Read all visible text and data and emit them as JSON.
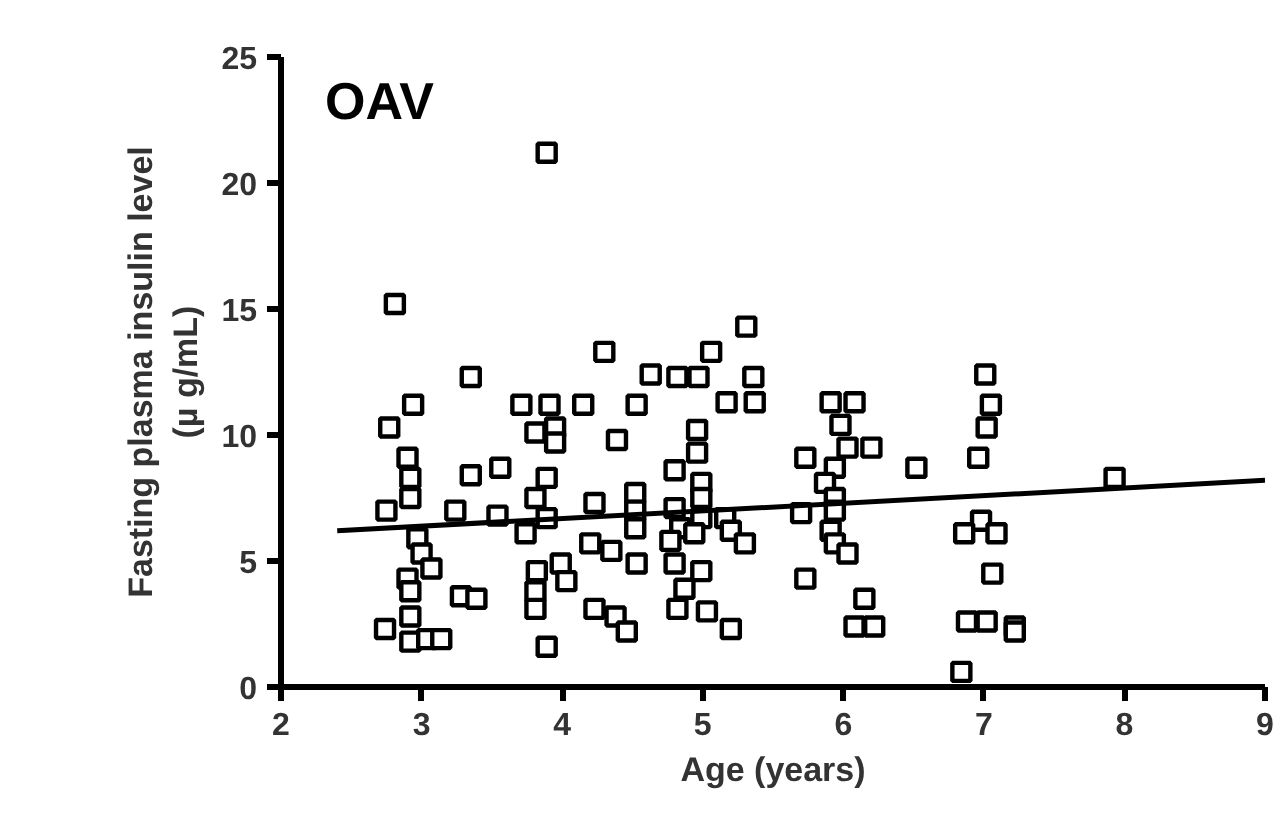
{
  "chart_data": {
    "type": "scatter",
    "title": "OAV",
    "xlabel": "Age (years)",
    "ylabel": "Fasting plasma insulin level\n(µ g/mL)",
    "xlim": [
      2,
      9
    ],
    "xticks": [
      2,
      3,
      4,
      5,
      6,
      7,
      8,
      9
    ],
    "ylim": [
      0,
      25
    ],
    "yticks": [
      0,
      5,
      10,
      15,
      20,
      25
    ],
    "grid": false,
    "series": [
      {
        "color": "#000000",
        "marker": "square",
        "x": [
          2.81,
          4.3,
          3.35,
          4.63,
          2.94,
          3.71,
          3.91,
          4.15,
          4.53,
          2.77,
          3.81,
          3.95,
          4.39,
          3.95,
          2.9,
          2.92,
          3.35,
          3.56,
          2.75,
          2.92,
          3.24,
          3.54,
          3.89,
          3.81,
          4.23,
          4.52,
          4.52,
          4.52,
          3.89,
          3.74,
          2.97,
          3.0,
          3.07,
          4.2,
          4.35,
          3.99,
          4.53,
          4.03,
          3.82,
          2.9,
          2.92,
          3.28,
          3.39,
          3.81,
          3.81,
          4.23,
          4.38,
          4.46,
          2.74,
          2.92,
          2.92,
          3.04,
          3.14,
          3.89,
          3.89,
          5.31,
          5.06,
          4.82,
          4.97,
          5.36,
          5.17,
          5.37,
          5.91,
          6.08,
          5.98,
          4.96,
          6.03,
          6.2,
          5.73,
          5.94,
          6.52,
          4.8,
          4.96,
          4.99,
          5.87,
          4.99,
          5.94,
          5.7,
          4.8,
          4.99,
          5.16,
          5.94,
          4.84,
          5.2,
          5.3,
          4.94,
          4.77,
          5.91,
          5.94,
          6.03,
          4.8,
          4.99,
          5.73,
          4.87,
          4.82,
          5.03,
          5.2,
          6.15,
          6.08,
          6.22,
          7.01,
          7.05,
          7.02,
          6.96,
          7.93,
          6.98,
          6.86,
          7.09,
          7.06,
          6.88,
          7.02,
          7.22,
          7.22,
          6.84
        ],
        "values": [
          15.2,
          13.3,
          12.3,
          12.4,
          11.2,
          11.2,
          11.2,
          11.2,
          11.2,
          10.3,
          10.1,
          10.3,
          9.8,
          9.7,
          9.1,
          8.3,
          8.4,
          8.7,
          7.0,
          7.5,
          7.0,
          6.8,
          8.3,
          7.5,
          7.3,
          7.7,
          7.0,
          6.3,
          6.7,
          6.1,
          5.9,
          5.3,
          4.7,
          5.7,
          5.4,
          4.9,
          4.9,
          4.2,
          4.6,
          4.3,
          3.8,
          3.6,
          3.5,
          3.8,
          3.1,
          3.1,
          2.8,
          2.2,
          2.3,
          2.8,
          1.8,
          1.9,
          1.9,
          1.6,
          21.2,
          14.3,
          13.3,
          12.3,
          12.3,
          12.3,
          11.3,
          11.3,
          11.3,
          11.3,
          10.4,
          10.2,
          9.5,
          9.5,
          9.1,
          8.7,
          8.7,
          8.6,
          9.3,
          8.1,
          8.1,
          7.5,
          7.5,
          6.9,
          7.1,
          6.7,
          6.7,
          7.0,
          6.3,
          6.2,
          5.7,
          6.1,
          5.8,
          6.2,
          5.7,
          5.3,
          4.9,
          4.6,
          4.3,
          3.9,
          3.1,
          3.0,
          2.3,
          3.5,
          2.4,
          2.4,
          12.4,
          11.2,
          10.3,
          9.1,
          8.3,
          6.6,
          6.1,
          6.1,
          4.5,
          2.6,
          2.6,
          2.4,
          2.2,
          0.6
        ]
      },
      {
        "type": "line",
        "color": "#000000",
        "line_style": "solid",
        "x": [
          2.4,
          9.0
        ],
        "values": [
          6.2,
          8.2
        ]
      }
    ]
  }
}
